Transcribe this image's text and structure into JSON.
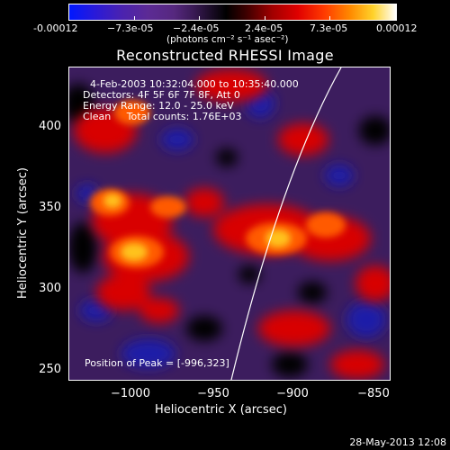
{
  "colorbar": {
    "ticks": [
      "-0.00012",
      "−7.3e-05",
      "−2.4e-05",
      "2.4e-05",
      "7.3e-05",
      "0.00012"
    ],
    "units": "(photons cm⁻² s⁻¹ asec⁻²)"
  },
  "title": "Reconstructed RHESSI Image",
  "info": {
    "time_range": "4-Feb-2003 10:32:04.000 to 10:35:40.000",
    "detectors": "Detectors: 4F 5F 6F 7F 8F, Att 0",
    "energy": "Energy Range: 12.0 - 25.0 keV",
    "clean": "Clean     Total counts: 1.76E+03",
    "peak": "Position of Peak = [-996,323]"
  },
  "axes": {
    "x_label": "Heliocentric X (arcsec)",
    "y_label": "Heliocentric Y (arcsec)",
    "x_ticks": [
      "−1000",
      "−950",
      "−900",
      "−850"
    ],
    "y_ticks": [
      "400",
      "350",
      "300",
      "250"
    ]
  },
  "timestamp": "28-May-2013 12:08",
  "colors": {
    "background": "#000000",
    "text": "#ffffff",
    "hot_core": "#ffd22a",
    "hot_mid": "#e00000",
    "cool": "#3c1d5e",
    "coldest": "#1a1aa0"
  }
}
